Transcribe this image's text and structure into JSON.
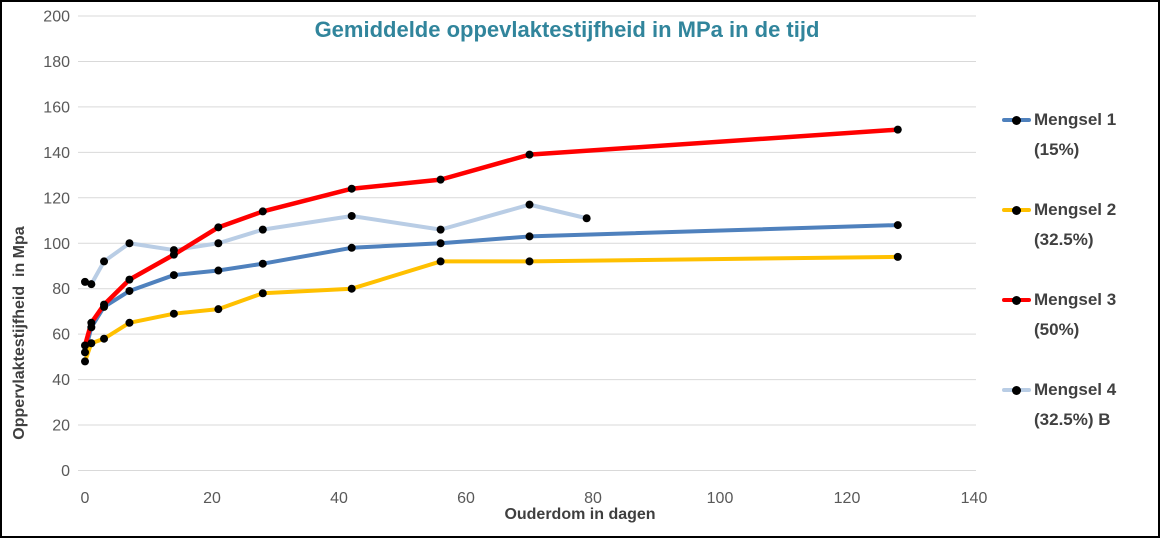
{
  "chart_data": {
    "type": "line",
    "title": "Gemiddelde oppevlaktestijfheid in MPa in de tijd",
    "xlabel": "Ouderdom in dagen",
    "ylabel": "Oppervlaktestijfheid  in Mpa",
    "xlim": [
      0,
      140
    ],
    "ylim": [
      0,
      200
    ],
    "x_ticks": [
      0,
      20,
      40,
      60,
      80,
      100,
      120,
      140
    ],
    "y_ticks": [
      0,
      20,
      40,
      60,
      80,
      100,
      120,
      140,
      160,
      180,
      200
    ],
    "grid": "horizontal",
    "legend_position": "right",
    "marker_color": "#000000",
    "colors": {
      "title": "#31859C",
      "tick_labels": "#595959",
      "axis_titles": "#3F3F3F",
      "gridlines": "#D9D9D9"
    },
    "series": [
      {
        "name": "Mengsel 1 (15%)",
        "legend_label": "Mengsel 1\n(15%)",
        "color": "#4F81BD",
        "x": [
          0,
          1,
          3,
          7,
          14,
          21,
          28,
          42,
          56,
          70,
          128
        ],
        "y": [
          52,
          63,
          72,
          79,
          86,
          88,
          91,
          98,
          100,
          103,
          108
        ]
      },
      {
        "name": "Mengsel 2 (32.5%)",
        "legend_label": "Mengsel 2\n(32.5%)",
        "color": "#FFC000",
        "x": [
          0,
          1,
          3,
          7,
          14,
          21,
          28,
          42,
          56,
          70,
          128
        ],
        "y": [
          48,
          56,
          58,
          65,
          69,
          71,
          78,
          80,
          92,
          92,
          94
        ]
      },
      {
        "name": "Mengsel 3 (50%)",
        "legend_label": "Mengsel 3\n(50%)",
        "color": "#FF0000",
        "x": [
          0,
          1,
          3,
          7,
          14,
          21,
          28,
          42,
          56,
          70,
          128
        ],
        "y": [
          55,
          65,
          73,
          84,
          95,
          107,
          114,
          124,
          128,
          139,
          150
        ]
      },
      {
        "name": "Mengsel 4 (32.5%) B",
        "legend_label": "Mengsel 4\n(32.5%) B",
        "color": "#B9CDE5",
        "x": [
          0,
          1,
          3,
          7,
          14,
          21,
          28,
          42,
          56,
          70,
          79
        ],
        "y": [
          83,
          82,
          92,
          100,
          97,
          100,
          106,
          112,
          106,
          117,
          111
        ]
      }
    ]
  }
}
